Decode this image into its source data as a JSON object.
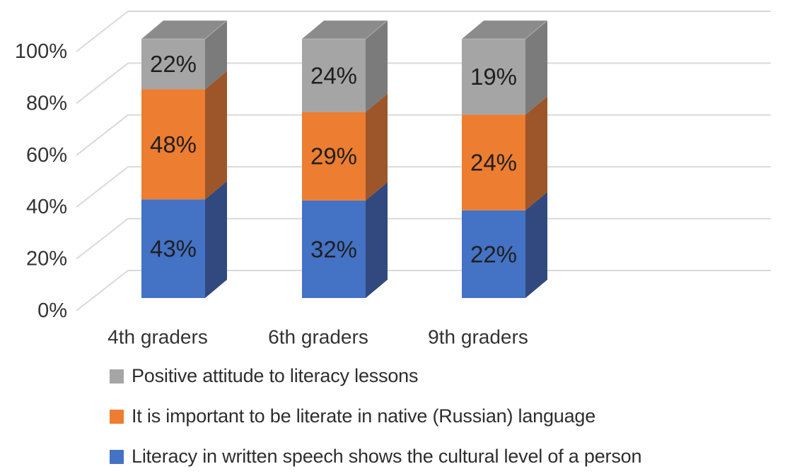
{
  "chart_data": {
    "type": "bar",
    "variant": "3d-100-percent-stacked-column",
    "title": "",
    "xlabel": "",
    "ylabel": "",
    "categories": [
      "4th graders",
      "6th graders",
      "9th graders"
    ],
    "series": [
      {
        "name": "Literacy in written speech shows the cultural level of a person",
        "values": [
          43,
          32,
          22
        ],
        "labels": [
          "43%",
          "32%",
          "22%"
        ],
        "color": "#4472C4",
        "side_color": "#31497E"
      },
      {
        "name": "It is important to be literate in native (Russian) language",
        "values": [
          48,
          29,
          24
        ],
        "labels": [
          "48%",
          "29%",
          "24%"
        ],
        "color": "#ED7D31",
        "side_color": "#9D552A"
      },
      {
        "name": "Positive attitude to literacy lessons",
        "values": [
          22,
          24,
          19
        ],
        "labels": [
          "22%",
          "24%",
          "19%"
        ],
        "color": "#A5A5A5",
        "side_color": "#7B7B7B",
        "top_color": "#8B8B8B"
      }
    ],
    "y_ticks": [
      "0%",
      "20%",
      "40%",
      "60%",
      "80%",
      "100%"
    ],
    "ylim": [
      0,
      100
    ],
    "grid": true,
    "legend_position": "bottom-left",
    "colors": {
      "gridline": "#D9D9D9",
      "axis_text": "#333333",
      "data_label_text": "#1f1f1f",
      "background": "#FFFFFF"
    }
  },
  "legend": {
    "items": [
      {
        "label": "Positive attitude to literacy lessons",
        "color": "#A5A5A5"
      },
      {
        "label": "It is important to be literate in native (Russian) language",
        "color": "#ED7D31"
      },
      {
        "label": "Literacy in written speech shows the cultural level of a person",
        "color": "#4472C4"
      }
    ]
  }
}
